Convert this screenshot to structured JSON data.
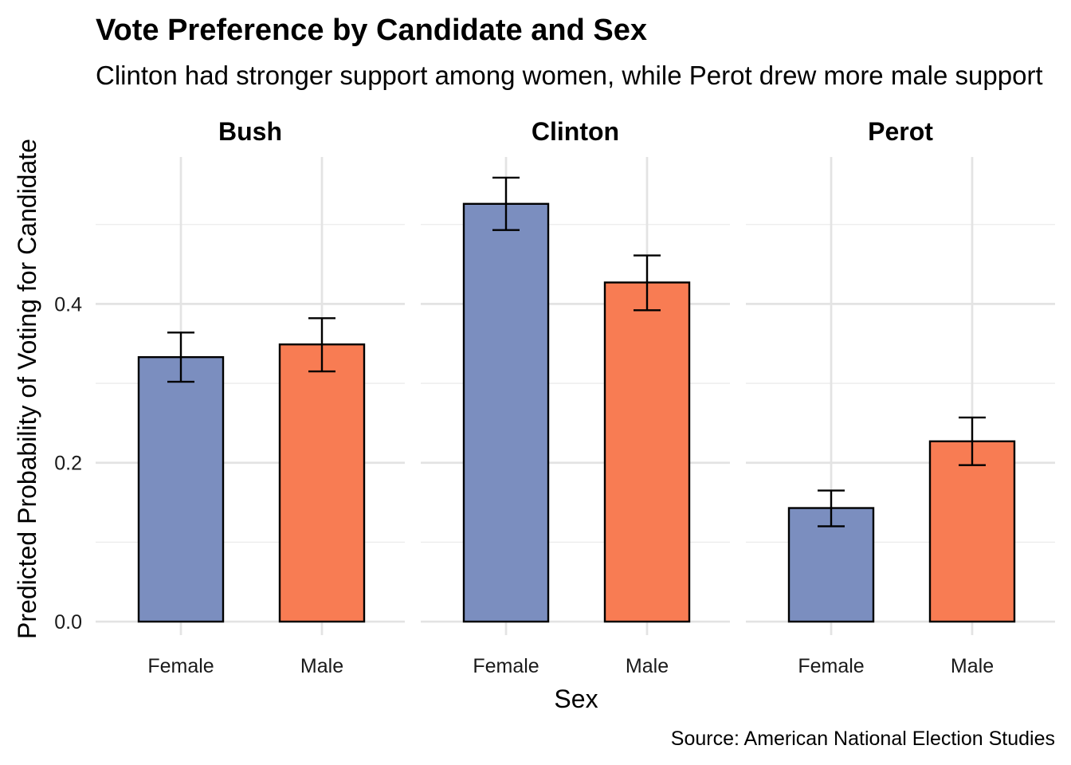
{
  "chart_data": {
    "type": "bar",
    "title": "Vote Preference by Candidate and Sex",
    "subtitle": "Clinton had stronger support among women, while Perot drew more male support",
    "xlabel": "Sex",
    "ylabel": "Predicted Probability of Voting for Candidate",
    "caption": "Source: American National Election Studies",
    "ylim": [
      -0.017,
      0.585
    ],
    "yticks": [
      0.0,
      0.2,
      0.4
    ],
    "ytick_labels": [
      "0.0",
      "0.2",
      "0.4"
    ],
    "grid": true,
    "categories": [
      "Female",
      "Male"
    ],
    "colors": {
      "Female": "#7b8ebf",
      "Male": "#f87c53"
    },
    "panels": [
      {
        "name": "Bush",
        "values": [
          0.333,
          0.349
        ],
        "error_low": [
          0.302,
          0.315
        ],
        "error_high": [
          0.364,
          0.382
        ]
      },
      {
        "name": "Clinton",
        "values": [
          0.526,
          0.427
        ],
        "error_low": [
          0.493,
          0.392
        ],
        "error_high": [
          0.559,
          0.461
        ]
      },
      {
        "name": "Perot",
        "values": [
          0.143,
          0.227
        ],
        "error_low": [
          0.12,
          0.197
        ],
        "error_high": [
          0.165,
          0.257
        ]
      }
    ]
  }
}
